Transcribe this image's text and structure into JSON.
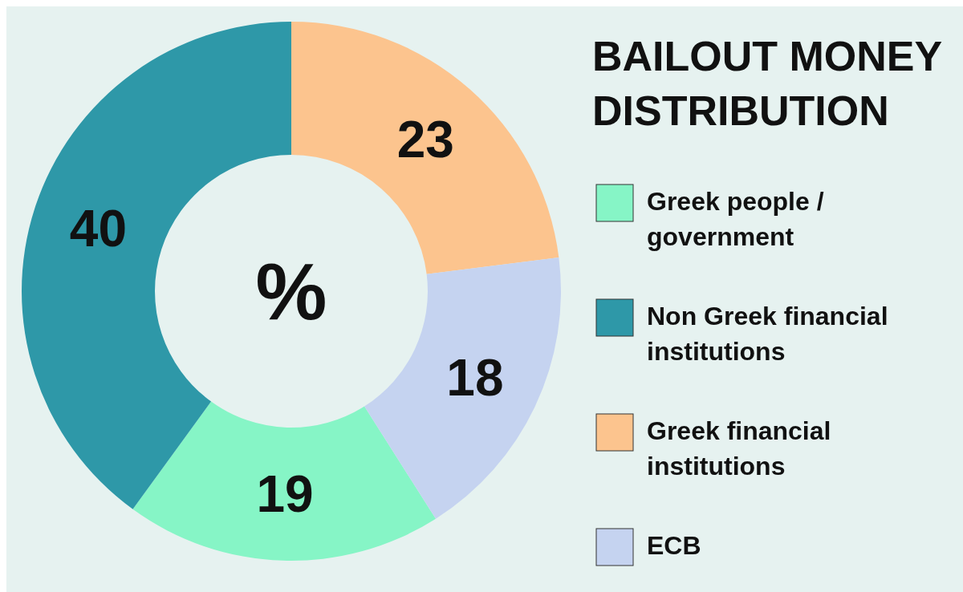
{
  "chart_data": {
    "type": "donut",
    "title": "BAILOUT MONEY DISTRIBUTION",
    "categories": [
      "Greek people / government",
      "Non Greek financial institutions",
      "Greek financial institutions",
      "ECB"
    ],
    "values": [
      19,
      40,
      23,
      18
    ],
    "colors": [
      "#86f5c6",
      "#2e98a8",
      "#fcc48e",
      "#c5d3f0"
    ],
    "data_labels": true,
    "legend": "right",
    "annotations": [
      "%"
    ]
  }
}
